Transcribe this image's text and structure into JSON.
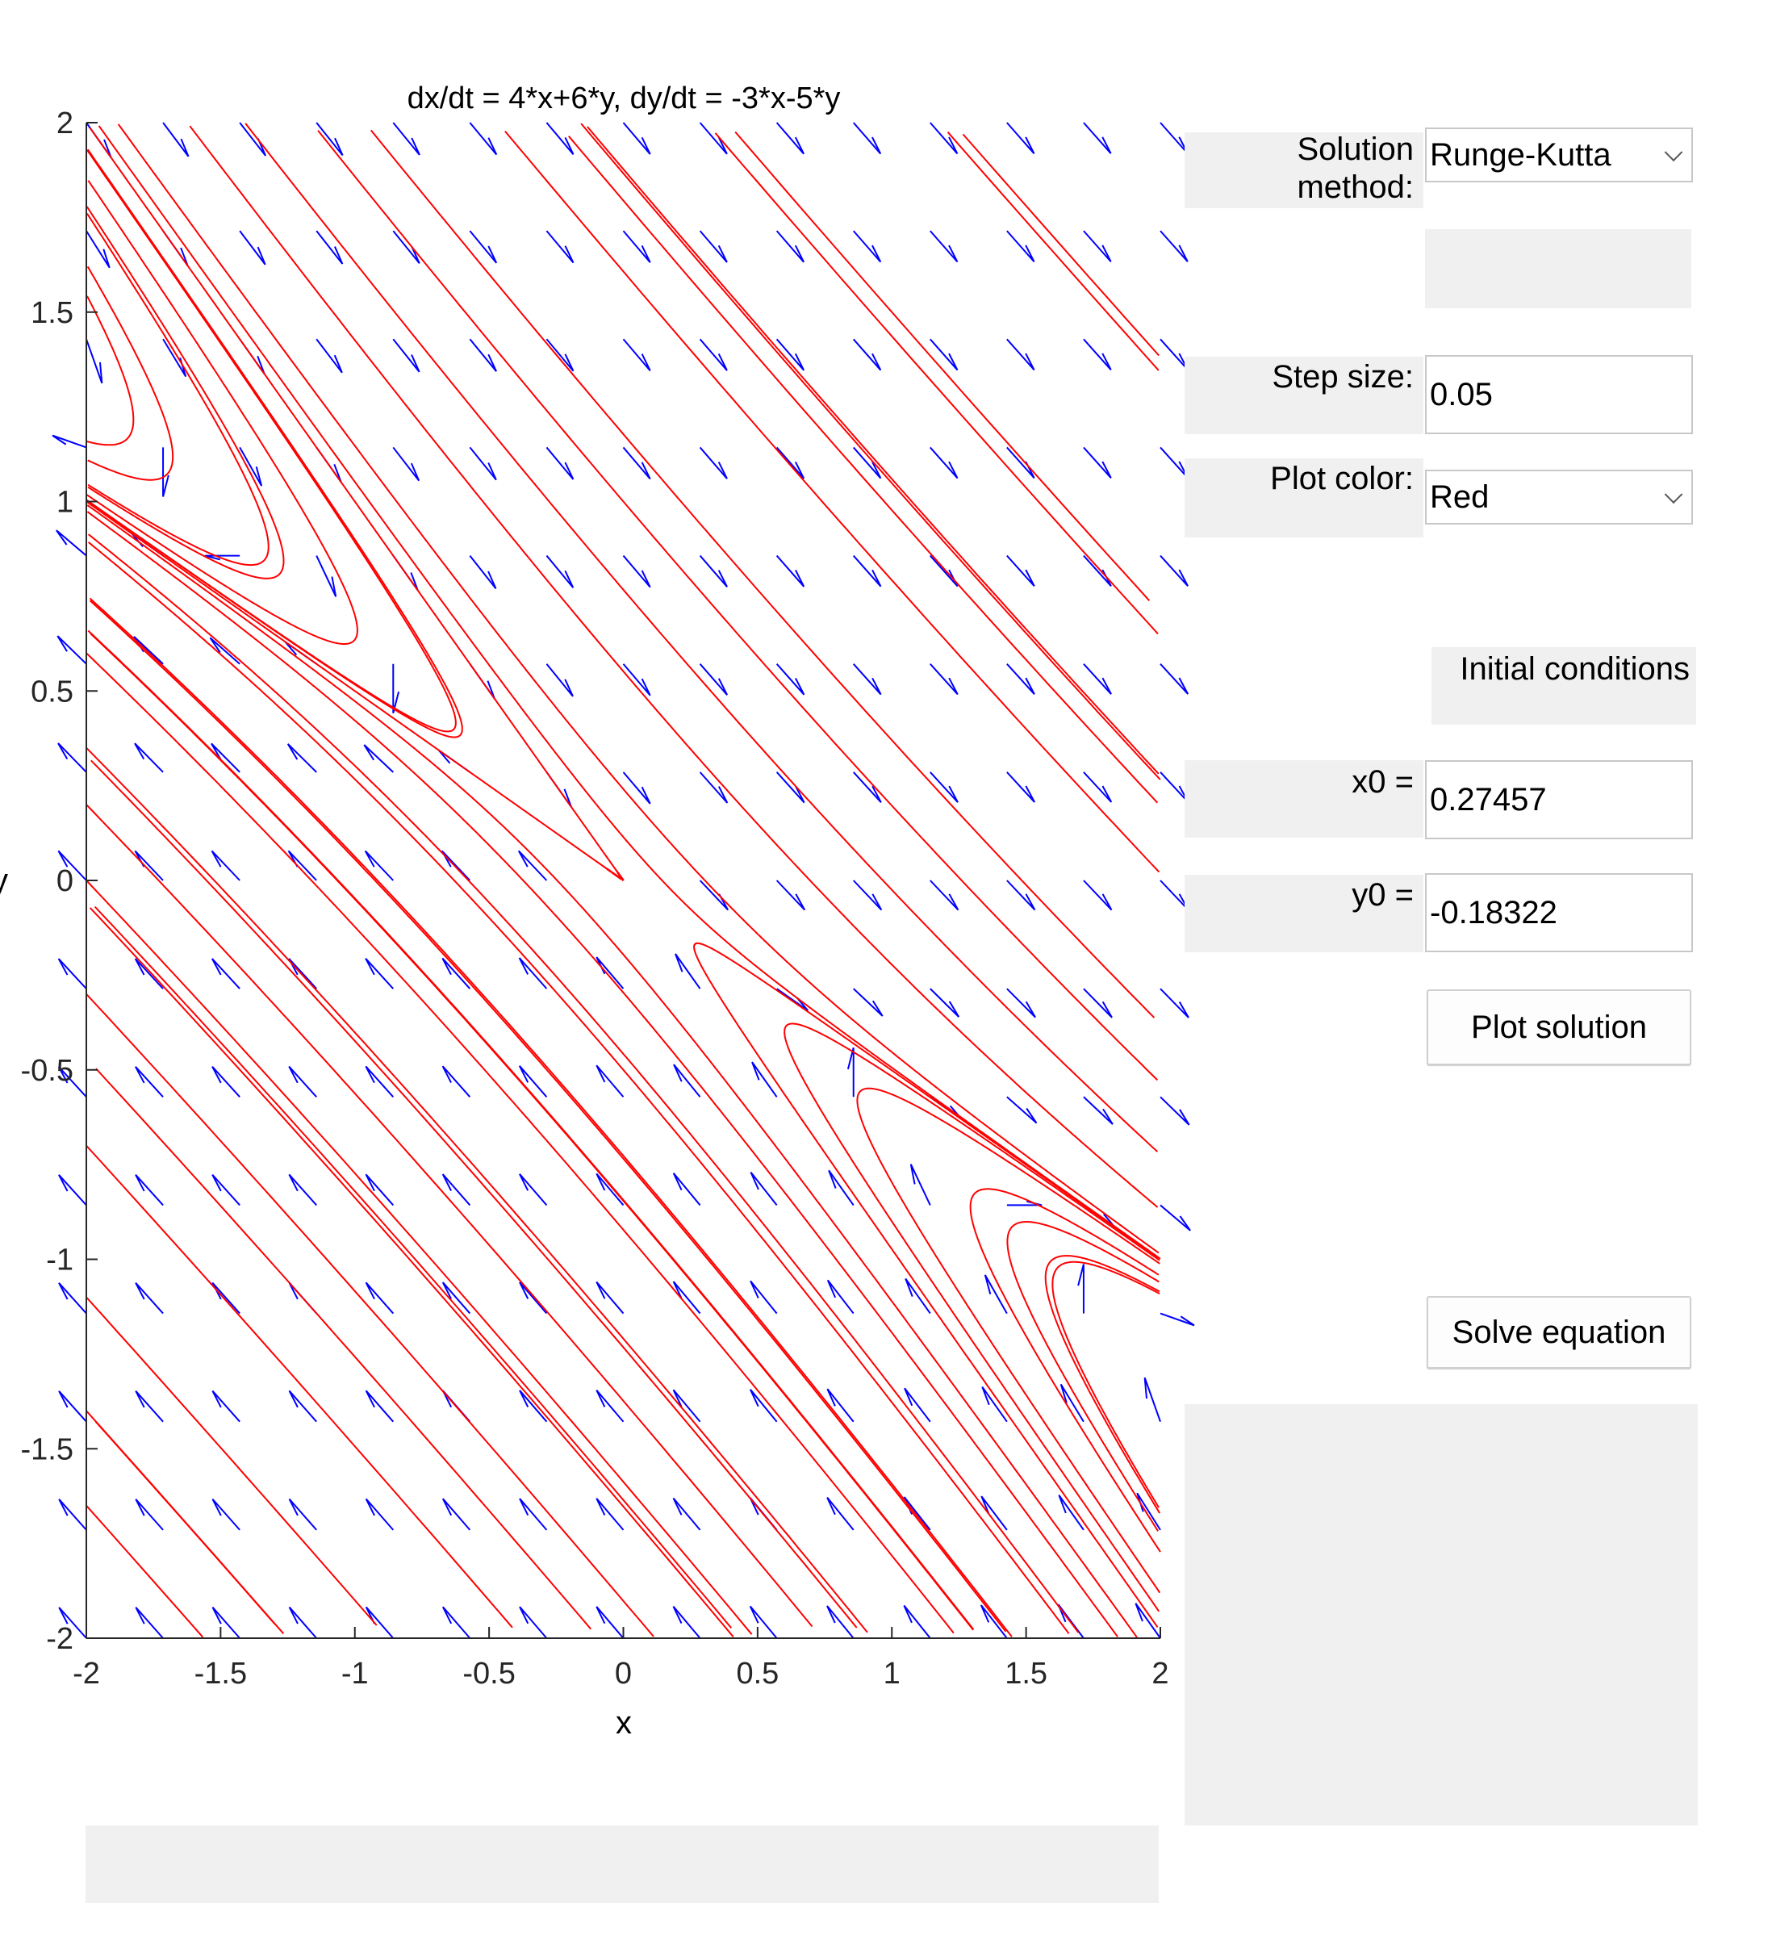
{
  "chart_data": {
    "type": "vector-field",
    "title": "dx/dt = 4*x+6*y, dy/dt = -3*x-5*y",
    "xlabel": "x",
    "ylabel": "y",
    "xlim": [
      -2,
      2
    ],
    "ylim": [
      -2,
      2
    ],
    "xticks": [
      "-2",
      "-1.5",
      "-1",
      "-0.5",
      "0",
      "0.5",
      "1",
      "1.5",
      "2"
    ],
    "yticks": [
      "-2",
      "-1.5",
      "-1",
      "-0.5",
      "0",
      "0.5",
      "1",
      "1.5",
      "2"
    ],
    "field": {
      "dx": [
        4,
        6
      ],
      "dy": [
        -3,
        -5
      ],
      "color": "#0000ff"
    },
    "solution_color": "#ff0000",
    "trajectories_initial_conditions": [
      [
        -1.9,
        1.15
      ],
      [
        -1.7,
        1.2
      ],
      [
        -1.55,
        1.25
      ],
      [
        -1.3,
        0.8
      ],
      [
        -1.0,
        0.7
      ],
      [
        -0.7,
        0.55
      ],
      [
        -0.6,
        0.4
      ],
      [
        -0.3,
        0.5
      ],
      [
        -0.1,
        0.2
      ],
      [
        0.3,
        -0.17
      ],
      [
        0.6,
        -0.4
      ],
      [
        0.9,
        -0.55
      ],
      [
        1.3,
        -0.9
      ],
      [
        1.6,
        -1.05
      ],
      [
        1.85,
        -1.0
      ],
      [
        -1.8,
        0.9
      ],
      [
        -1.6,
        1.6
      ],
      [
        -1.3,
        1.7
      ],
      [
        -0.5,
        1.6
      ],
      [
        0.2,
        1.7
      ],
      [
        0.6,
        1.3
      ],
      [
        1.0,
        1.5
      ],
      [
        1.6,
        1.7
      ],
      [
        1.8,
        1.5
      ],
      [
        -2.0,
        0.6
      ],
      [
        -2.0,
        0.35
      ],
      [
        -2.0,
        0.2
      ],
      [
        -2.0,
        0.0
      ],
      [
        -2.0,
        -0.3
      ],
      [
        -2.0,
        -0.7
      ],
      [
        -2.0,
        -1.1
      ],
      [
        -2.0,
        -1.4
      ],
      [
        -2.0,
        -1.65
      ],
      [
        -1.3,
        -0.6
      ],
      [
        -0.9,
        -0.9
      ],
      [
        -0.4,
        -0.4
      ],
      [
        0.0,
        -0.5
      ],
      [
        0.4,
        -0.8
      ],
      [
        0.9,
        -1.1
      ],
      [
        1.3,
        -1.4
      ],
      [
        -1.5,
        -1.8
      ],
      [
        -0.7,
        -1.5
      ],
      [
        0.2,
        -1.4
      ],
      [
        1.0,
        -1.6
      ],
      [
        1.7,
        -1.3
      ],
      [
        0.45,
        0.4
      ],
      [
        -1.2,
        0.1
      ],
      [
        -0.8,
        -0.2
      ],
      [
        0.0,
        1.0
      ],
      [
        1.2,
        0.9
      ],
      [
        1.5,
        0.4
      ],
      [
        1.8,
        0.8
      ]
    ]
  },
  "controls": {
    "solution_method_label": "Solution method:",
    "solution_method_value": "Runge-Kutta",
    "step_size_label": "Step size:",
    "step_size_value": "0.05",
    "plot_color_label": "Plot color:",
    "plot_color_value": "Red",
    "initial_conditions_label": "Initial conditions",
    "x0_label": "x0 =",
    "x0_value": "0.27457",
    "y0_label": "y0 =",
    "y0_value": "-0.18322",
    "plot_solution_button": "Plot solution",
    "solve_equation_button": "Solve equation"
  }
}
